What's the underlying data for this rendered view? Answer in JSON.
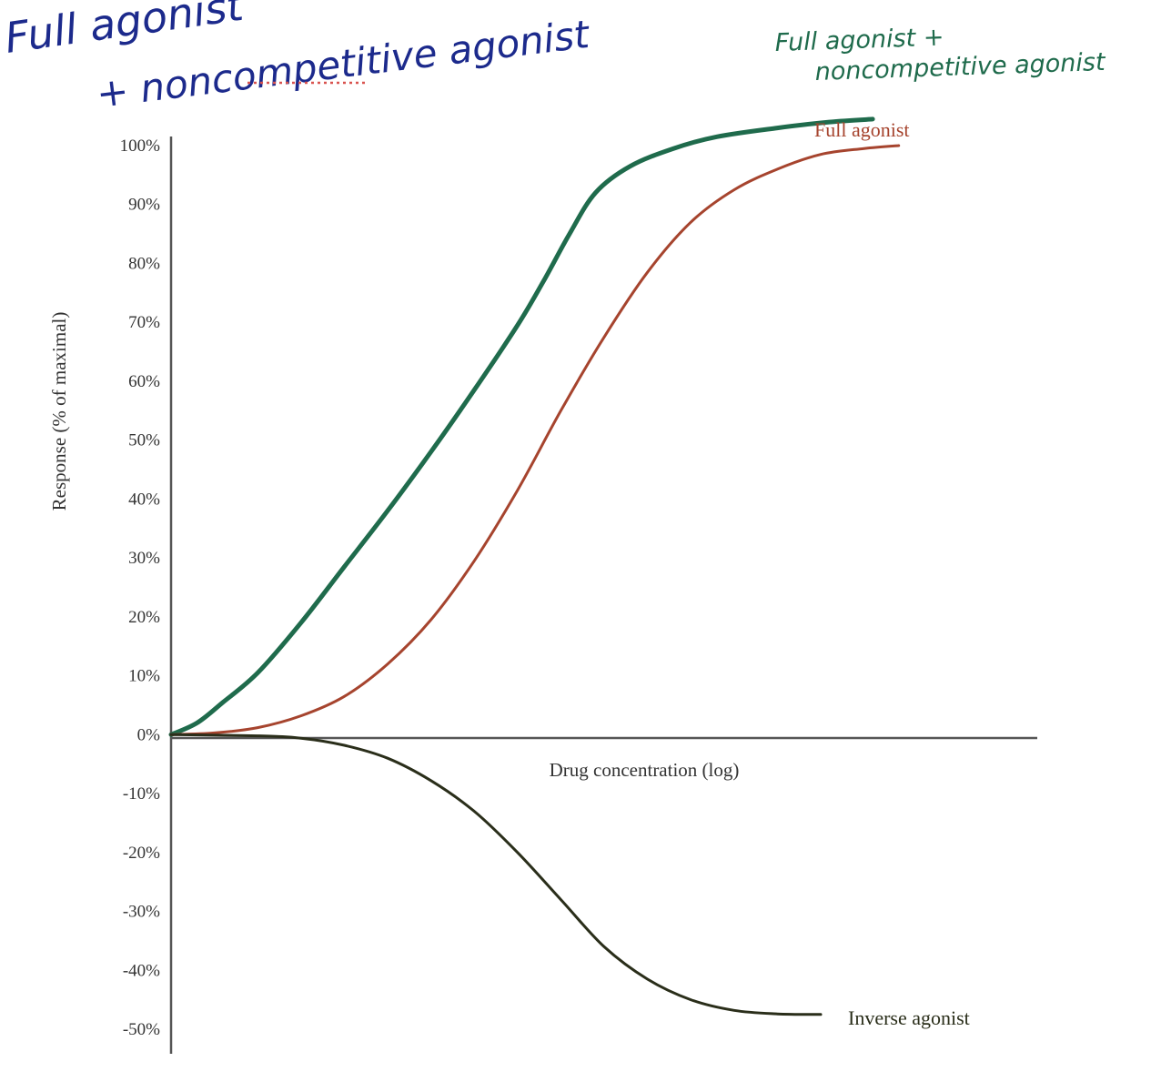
{
  "annotations": {
    "main_line1": "Full agonist",
    "main_line2": "+ noncompetitive agonist",
    "green_line1": "Full agonist +",
    "green_line2": "noncompetitive agonist"
  },
  "colors": {
    "green": "#1f6b4c",
    "red": "#a6442e",
    "dark": "#2a2e1a",
    "handwriting_blue": "#1c2a8c",
    "axis": "#555555",
    "dotted": "#d9534f"
  },
  "chart_data": {
    "type": "line",
    "xlabel": "Drug concentration (log)",
    "ylabel": "Response (% of maximal)",
    "x_unit": "log concentration (unlabeled)",
    "xlim": [
      0,
      10
    ],
    "ylim": [
      -50,
      100
    ],
    "y_ticks": [
      {
        "value": 100,
        "label": "100%"
      },
      {
        "value": 90,
        "label": "90%"
      },
      {
        "value": 80,
        "label": "80%"
      },
      {
        "value": 70,
        "label": "70%"
      },
      {
        "value": 60,
        "label": "60%"
      },
      {
        "value": 50,
        "label": "50%"
      },
      {
        "value": 40,
        "label": "40%"
      },
      {
        "value": 30,
        "label": "30%"
      },
      {
        "value": 20,
        "label": "20%"
      },
      {
        "value": 10,
        "label": "10%"
      },
      {
        "value": 0,
        "label": "0%"
      },
      {
        "value": -10,
        "label": "-10%"
      },
      {
        "value": -20,
        "label": "-20%"
      },
      {
        "value": -30,
        "label": "-30%"
      },
      {
        "value": -40,
        "label": "-40%"
      },
      {
        "value": -50,
        "label": "-50%"
      }
    ],
    "grid": false,
    "series": [
      {
        "name": "Full agonist + noncompetitive agonist",
        "color_key": "green",
        "points": [
          [
            0,
            0
          ],
          [
            0.3,
            2
          ],
          [
            0.6,
            5.5
          ],
          [
            1,
            10.5
          ],
          [
            1.5,
            19
          ],
          [
            2,
            28.5
          ],
          [
            2.5,
            38
          ],
          [
            3,
            48
          ],
          [
            3.5,
            58.5
          ],
          [
            4,
            69.5
          ],
          [
            4.3,
            77
          ],
          [
            4.6,
            85
          ],
          [
            4.9,
            92
          ],
          [
            5.3,
            96.5
          ],
          [
            5.8,
            99.5
          ],
          [
            6.3,
            101.5
          ],
          [
            7,
            103
          ],
          [
            7.6,
            104
          ],
          [
            8.1,
            104.5
          ]
        ]
      },
      {
        "name": "Full agonist",
        "color_key": "red",
        "points": [
          [
            0,
            0
          ],
          [
            0.5,
            0.3
          ],
          [
            1,
            1.2
          ],
          [
            1.5,
            3.2
          ],
          [
            2,
            6.5
          ],
          [
            2.5,
            12
          ],
          [
            3,
            19.5
          ],
          [
            3.5,
            29.5
          ],
          [
            4,
            41.5
          ],
          [
            4.5,
            55
          ],
          [
            5,
            67.5
          ],
          [
            5.5,
            78.5
          ],
          [
            6,
            87
          ],
          [
            6.5,
            92.5
          ],
          [
            7,
            96
          ],
          [
            7.5,
            98.5
          ],
          [
            8,
            99.5
          ],
          [
            8.4,
            100
          ]
        ]
      },
      {
        "name": "Inverse agonist",
        "color_key": "dark",
        "points": [
          [
            0,
            0
          ],
          [
            1,
            -0.2
          ],
          [
            1.5,
            -0.6
          ],
          [
            2,
            -1.8
          ],
          [
            2.5,
            -4
          ],
          [
            3,
            -7.8
          ],
          [
            3.5,
            -13
          ],
          [
            4,
            -20
          ],
          [
            4.5,
            -28
          ],
          [
            5,
            -36
          ],
          [
            5.5,
            -41.5
          ],
          [
            6,
            -45
          ],
          [
            6.5,
            -46.8
          ],
          [
            7,
            -47.4
          ],
          [
            7.5,
            -47.5
          ]
        ]
      }
    ],
    "series_labels": [
      {
        "name": "Full agonist",
        "color_key": "red"
      },
      {
        "name": "Inverse agonist",
        "color_key": "dark"
      }
    ]
  }
}
